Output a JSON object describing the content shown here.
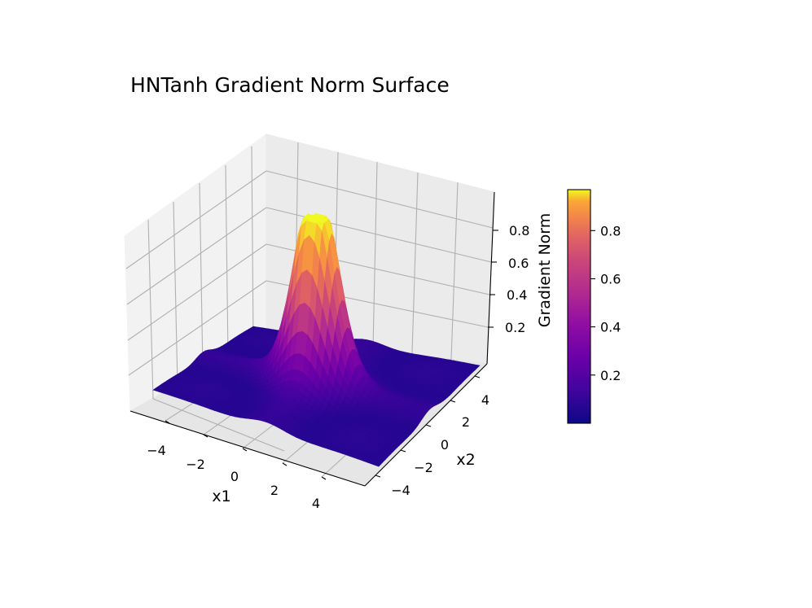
{
  "chart_data": {
    "type": "surface3d",
    "title": "HNTanh Gradient Norm Surface",
    "xlabel": "x1",
    "ylabel": "x2",
    "zlabel": "",
    "colorbar_label": "Gradient Norm",
    "colormap": "plasma",
    "x_range": [
      -5,
      5
    ],
    "y_range": [
      -5,
      5
    ],
    "z_range": [
      0.0,
      0.97
    ],
    "x_ticks": [
      "−4",
      "−2",
      "0",
      "2",
      "4"
    ],
    "y_ticks": [
      "−4",
      "−2",
      "0",
      "2",
      "4"
    ],
    "z_ticks": [
      "0.2",
      "0.4",
      "0.6",
      "0.8"
    ],
    "colorbar_ticks": [
      "0.2",
      "0.4",
      "0.6",
      "0.8"
    ],
    "peak": {
      "x1": 0,
      "x2": 0,
      "value": 0.97
    },
    "grid": true
  }
}
